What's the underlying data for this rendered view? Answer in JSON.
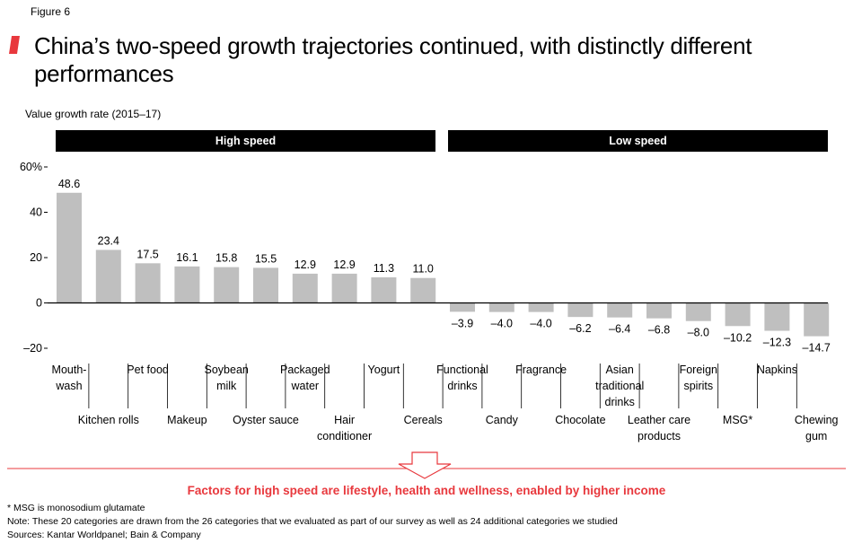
{
  "figure_label": "Figure 6",
  "title": "China’s two-speed growth trajectories continued, with distinctly different performances",
  "accent_color": "#e8383d",
  "bar_color": "#bfbfbf",
  "chart_data": {
    "type": "bar",
    "subtitle": "Value growth rate (2015–17)",
    "groups": [
      {
        "label": "High speed",
        "start_index": 0,
        "end_index": 9
      },
      {
        "label": "Low speed",
        "start_index": 10,
        "end_index": 19
      }
    ],
    "categories": [
      "Mouth-\nwash",
      "Kitchen rolls",
      "Pet food",
      "Makeup",
      "Soybean\nmilk",
      "Oyster sauce",
      "Packaged\nwater",
      "Hair\nconditioner",
      "Yogurt",
      "Cereals",
      "Functional\ndrinks",
      "Candy",
      "Fragrance",
      "Chocolate",
      "Asian\ntraditional\ndrinks",
      "Leather care\nproducts",
      "Foreign\nspirits",
      "MSG*",
      "Napkins",
      "Chewing\ngum"
    ],
    "values": [
      48.6,
      23.4,
      17.5,
      16.1,
      15.8,
      15.5,
      12.9,
      12.9,
      11.3,
      11.0,
      -3.9,
      -4.0,
      -4.0,
      -6.2,
      -6.4,
      -6.8,
      -8.0,
      -10.2,
      -12.3,
      -14.7
    ],
    "value_labels": [
      "48.6",
      "23.4",
      "17.5",
      "16.1",
      "15.8",
      "15.5",
      "12.9",
      "12.9",
      "11.3",
      "11.0",
      "–3.9",
      "–4.0",
      "–4.0",
      "–6.2",
      "–6.4",
      "–6.8",
      "–8.0",
      "–10.2",
      "–12.3",
      "–14.7"
    ],
    "y_ticks": [
      60,
      40,
      20,
      0,
      -20
    ],
    "y_tick_labels": [
      "60%",
      "40",
      "20",
      "0",
      "–20"
    ],
    "ylim": [
      -20,
      60
    ]
  },
  "callout": "Factors for high speed are lifestyle, health and wellness, enabled by higher income",
  "footnotes": [
    "* MSG is monosodium glutamate",
    "Note: These 20 categories are drawn from the 26 categories that we evaluated as part of our survey as well as 24 additional categories we studied",
    "Sources: Kantar Worldpanel; Bain & Company"
  ]
}
